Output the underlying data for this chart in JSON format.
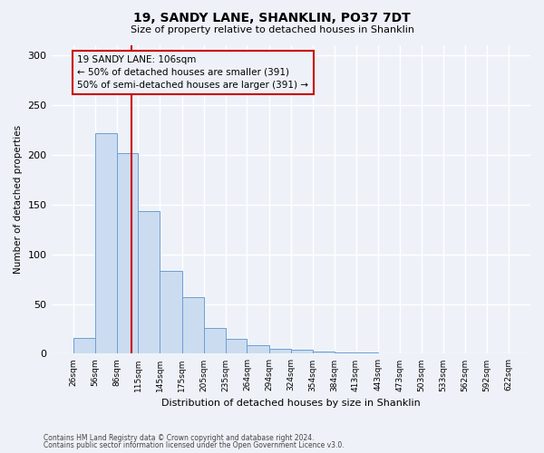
{
  "title": "19, SANDY LANE, SHANKLIN, PO37 7DT",
  "subtitle": "Size of property relative to detached houses in Shanklin",
  "xlabel": "Distribution of detached houses by size in Shanklin",
  "ylabel": "Number of detached properties",
  "property_label": "19 SANDY LANE: 106sqm",
  "annotation_line1": "← 50% of detached houses are smaller (391)",
  "annotation_line2": "50% of semi-detached houses are larger (391) →",
  "vline_x": 106,
  "bin_edges": [
    26,
    56,
    86,
    115,
    145,
    175,
    205,
    235,
    264,
    294,
    324,
    354,
    384,
    413,
    443,
    473,
    503,
    533,
    562,
    592,
    622
  ],
  "bar_heights": [
    16,
    222,
    202,
    143,
    83,
    57,
    26,
    15,
    9,
    5,
    4,
    2,
    1,
    1,
    0,
    0,
    0,
    0,
    0,
    0
  ],
  "bar_color": "#ccdcf0",
  "bar_edge_color": "#6b9fd4",
  "vline_color": "#cc0000",
  "background_color": "#eef2f8",
  "grid_color": "#ffffff",
  "footnote1": "Contains HM Land Registry data © Crown copyright and database right 2024.",
  "footnote2": "Contains public sector information licensed under the Open Government Licence v3.0.",
  "ylim": [
    0,
    310
  ],
  "yticks": [
    0,
    50,
    100,
    150,
    200,
    250,
    300
  ]
}
